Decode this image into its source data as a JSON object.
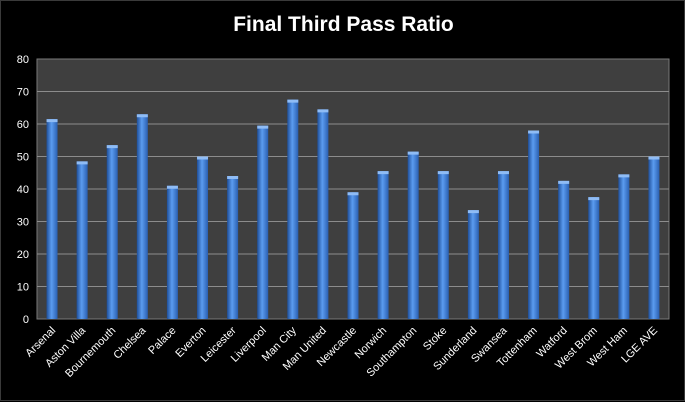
{
  "chart_data": {
    "type": "bar",
    "title": "Final Third Pass Ratio",
    "xlabel": "",
    "ylabel": "",
    "ylim": [
      0,
      80
    ],
    "yticks": [
      0,
      10,
      20,
      30,
      40,
      50,
      60,
      70,
      80
    ],
    "grid": true,
    "legend": "none",
    "categories": [
      "Arsenal",
      "Aston Villa",
      "Bournemouth",
      "Chelsea",
      "Palace",
      "Everton",
      "Leicester",
      "Liverpool",
      "Man City",
      "Man United",
      "Newcastle",
      "Norwich",
      "Southampton",
      "Stoke",
      "Sunderland",
      "Swansea",
      "Tottenham",
      "Watford",
      "West Brom",
      "West Ham",
      "LGE AVE"
    ],
    "values": [
      61.5,
      48.5,
      53.5,
      63,
      41,
      50,
      44,
      59.5,
      67.5,
      64.5,
      39,
      45.5,
      51.5,
      45.5,
      33.5,
      45.5,
      58,
      42.5,
      37.5,
      44.5,
      50
    ],
    "colors": {
      "background": "#000000",
      "plot_area": "#3f3f3f",
      "gridline": "#8c8c8c",
      "bar": "#3f7fd6",
      "text": "#ffffff"
    }
  }
}
